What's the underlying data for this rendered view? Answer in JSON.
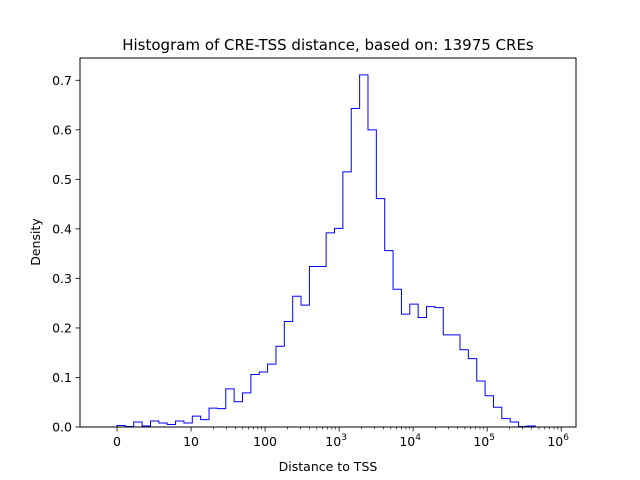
{
  "chart_data": {
    "type": "histogram",
    "title": "Histogram of CRE-TSS distance, based on: 13975 CREs",
    "xlabel": "Distance to TSS",
    "ylabel": "Density",
    "xscale": "symlog",
    "xlim": [
      -0.5,
      6.2
    ],
    "ylim": [
      0,
      0.745
    ],
    "x_ticks": [
      {
        "pos": 0,
        "label": "0",
        "sup": ""
      },
      {
        "pos": 1,
        "label": "10",
        "sup": ""
      },
      {
        "pos": 2,
        "label": "100",
        "sup": ""
      },
      {
        "pos": 3,
        "label": "10",
        "sup": "3"
      },
      {
        "pos": 4,
        "label": "10",
        "sup": "4"
      },
      {
        "pos": 5,
        "label": "10",
        "sup": "5"
      },
      {
        "pos": 6,
        "label": "10",
        "sup": "6"
      }
    ],
    "y_ticks": [
      0.0,
      0.1,
      0.2,
      0.3,
      0.4,
      0.5,
      0.6,
      0.7
    ],
    "y_tick_labels": [
      "0.0",
      "0.1",
      "0.2",
      "0.3",
      "0.4",
      "0.5",
      "0.6",
      "0.7"
    ],
    "color": "#0000ff",
    "grid": false,
    "bin_edges": [
      0.0,
      0.113,
      0.226,
      0.339,
      0.452,
      0.565,
      0.678,
      0.791,
      0.904,
      1.017,
      1.13,
      1.243,
      1.356,
      1.469,
      1.582,
      1.695,
      1.808,
      1.921,
      2.034,
      2.147,
      2.26,
      2.373,
      2.486,
      2.599,
      2.712,
      2.825,
      2.938,
      3.051,
      3.164,
      3.277,
      3.39,
      3.503,
      3.616,
      3.729,
      3.842,
      3.955,
      4.068,
      4.181,
      4.294,
      4.407,
      4.52,
      4.633,
      4.746,
      4.859,
      4.972,
      5.085,
      5.198,
      5.311,
      5.424,
      5.537,
      5.65
    ],
    "densities": [
      0.003,
      0.001,
      0.01,
      0.002,
      0.012,
      0.008,
      0.005,
      0.012,
      0.008,
      0.022,
      0.015,
      0.038,
      0.037,
      0.077,
      0.051,
      0.069,
      0.106,
      0.111,
      0.127,
      0.163,
      0.213,
      0.264,
      0.246,
      0.324,
      0.324,
      0.392,
      0.401,
      0.515,
      0.643,
      0.711,
      0.6,
      0.461,
      0.356,
      0.278,
      0.228,
      0.248,
      0.221,
      0.243,
      0.241,
      0.186,
      0.186,
      0.156,
      0.138,
      0.093,
      0.063,
      0.04,
      0.017,
      0.01,
      0.001,
      0.002
    ]
  }
}
